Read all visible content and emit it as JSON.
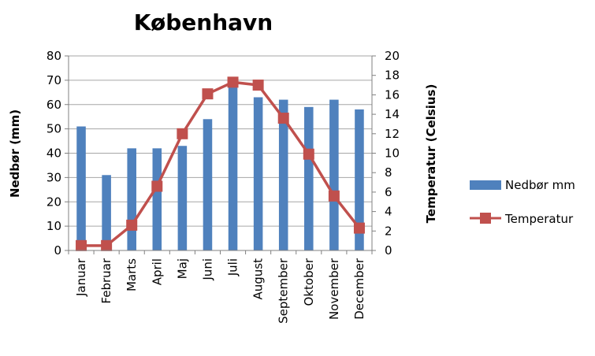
{
  "chart_data": {
    "type": "bar",
    "title": "København",
    "categories": [
      "Januar",
      "Februar",
      "Marts",
      "April",
      "Maj",
      "Juni",
      "Juli",
      "August",
      "September",
      "Oktober",
      "November",
      "December"
    ],
    "series": [
      {
        "name": "Nedbør mm",
        "type": "bar",
        "axis": "left",
        "color": "#4f81bd",
        "values": [
          51,
          31,
          42,
          42,
          43,
          54,
          70,
          63,
          62,
          59,
          62,
          58
        ]
      },
      {
        "name": "Temperatur",
        "type": "line",
        "axis": "right",
        "color": "#c0504d",
        "marker": "square",
        "values": [
          0.5,
          0.5,
          2.6,
          6.6,
          12.0,
          16.1,
          17.3,
          17.0,
          13.6,
          9.9,
          5.6,
          2.3
        ]
      }
    ],
    "ylabel": "Nedbør (mm)",
    "ylim": [
      0,
      80
    ],
    "yticks": [
      "0",
      "10",
      "20",
      "30",
      "40",
      "50",
      "60",
      "70",
      "80"
    ],
    "y2label": "Temperatur (Celsius)",
    "y2lim": [
      0,
      20
    ],
    "y2ticks": [
      "0",
      "2",
      "4",
      "6",
      "8",
      "10",
      "12",
      "14",
      "16",
      "18",
      "20"
    ],
    "grid": true,
    "legend_position": "right"
  }
}
